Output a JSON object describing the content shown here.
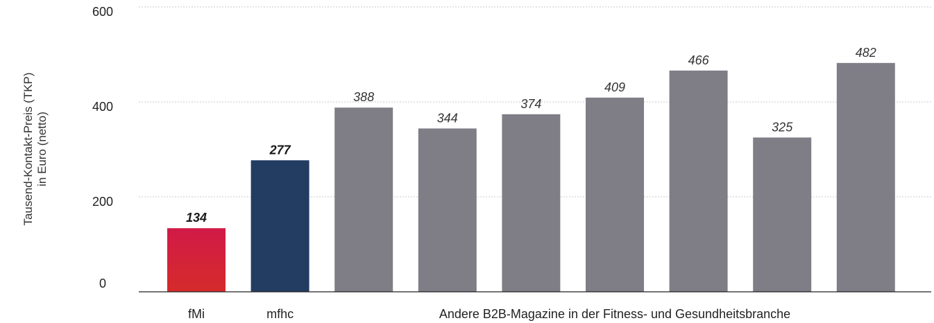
{
  "chart_data": {
    "type": "bar",
    "ylabel_lines": [
      "Tausend-Kontakt-Preis (TKP)",
      "in Euro (netto)"
    ],
    "yticks": [
      0,
      200,
      400,
      600
    ],
    "ylim": [
      0,
      600
    ],
    "grid": true,
    "bars": [
      {
        "value": 134,
        "label": "134",
        "color": "#d42a35",
        "highlight": true
      },
      {
        "value": 277,
        "label": "277",
        "color": "#233c62",
        "highlight": true
      },
      {
        "value": 388,
        "label": "388",
        "color": "#7f7e87",
        "highlight": false
      },
      {
        "value": 344,
        "label": "344",
        "color": "#7f7e87",
        "highlight": false
      },
      {
        "value": 374,
        "label": "374",
        "color": "#7f7e87",
        "highlight": false
      },
      {
        "value": 409,
        "label": "409",
        "color": "#7f7e87",
        "highlight": false
      },
      {
        "value": 466,
        "label": "466",
        "color": "#7f7e87",
        "highlight": false
      },
      {
        "value": 325,
        "label": "325",
        "color": "#7f7e87",
        "highlight": false
      },
      {
        "value": 482,
        "label": "482",
        "color": "#7f7e87",
        "highlight": false
      }
    ],
    "category_labels": [
      {
        "text": "fMi",
        "bars": [
          0
        ]
      },
      {
        "text": "mfhc",
        "bars": [
          1
        ]
      },
      {
        "text": "Andere B2B-Magazine in der Fitness- und Gesundheitsbranche",
        "bars": [
          2,
          3,
          4,
          5,
          6,
          7,
          8
        ]
      }
    ]
  }
}
